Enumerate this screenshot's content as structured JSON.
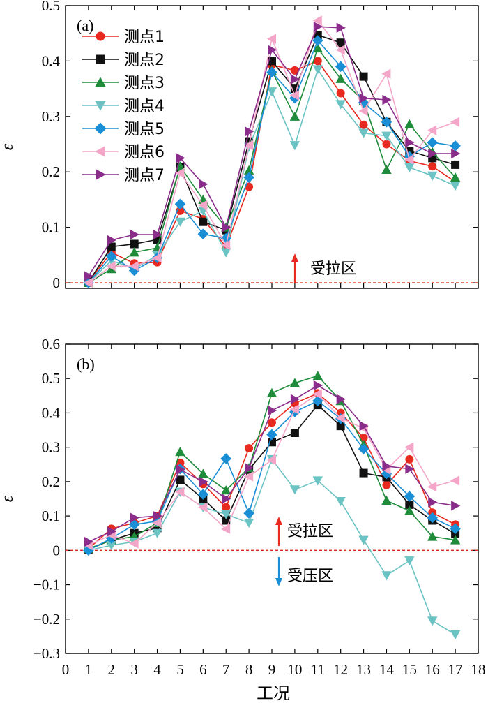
{
  "figure": {
    "xlabel": "工况",
    "x_ticks": [
      "0",
      "1",
      "2",
      "3",
      "4",
      "5",
      "6",
      "7",
      "8",
      "9",
      "10",
      "11",
      "12",
      "13",
      "14",
      "15",
      "16",
      "17",
      "18"
    ]
  },
  "chart_data": [
    {
      "type": "line",
      "panel_label": "(a)",
      "ylabel": "ε",
      "xlim": [
        0,
        18
      ],
      "ylim": [
        -0.01,
        0.5
      ],
      "y_ticks": [
        "0",
        "0.1",
        "0.2",
        "0.3",
        "0.4",
        "0.5"
      ],
      "y_tick_values": [
        0,
        0.1,
        0.2,
        0.3,
        0.4,
        0.5
      ],
      "zero_line": true,
      "annotations": [
        {
          "text": "受拉区",
          "arrow": "up",
          "color": "#e8291f"
        }
      ],
      "legend": {
        "position": "top-left"
      },
      "x": [
        1,
        2,
        3,
        4,
        5,
        6,
        7,
        8,
        9,
        10,
        11,
        12,
        13,
        14,
        15,
        16,
        17
      ],
      "series": [
        {
          "name": "测点1",
          "color": "#e8291f",
          "marker": "circle",
          "values": [
            0.002,
            0.055,
            0.035,
            0.037,
            0.13,
            0.115,
            0.065,
            0.173,
            0.393,
            0.383,
            0.4,
            0.342,
            0.285,
            0.25,
            0.22,
            0.21,
            0.182
          ]
        },
        {
          "name": "测点2",
          "color": "#111111",
          "marker": "square",
          "values": [
            0.001,
            0.065,
            0.07,
            0.078,
            0.208,
            0.11,
            0.095,
            0.255,
            0.4,
            0.35,
            0.447,
            0.433,
            0.372,
            0.29,
            0.238,
            0.225,
            0.213
          ]
        },
        {
          "name": "测点3",
          "color": "#1e8c3a",
          "marker": "triangle-up",
          "values": [
            0.0,
            0.025,
            0.055,
            0.063,
            0.21,
            0.15,
            0.1,
            0.203,
            0.382,
            0.3,
            0.423,
            0.368,
            0.328,
            0.204,
            0.286,
            0.236,
            0.19
          ]
        },
        {
          "name": "测点4",
          "color": "#6cc3c3",
          "marker": "triangle-down",
          "values": [
            0.0,
            0.04,
            0.025,
            0.05,
            0.11,
            0.13,
            0.055,
            0.245,
            0.345,
            0.248,
            0.385,
            0.322,
            0.27,
            0.265,
            0.208,
            0.193,
            0.175
          ]
        },
        {
          "name": "测点5",
          "color": "#1a8fd6",
          "marker": "diamond",
          "values": [
            0.0,
            0.048,
            0.022,
            0.045,
            0.142,
            0.088,
            0.08,
            0.19,
            0.38,
            0.333,
            0.437,
            0.39,
            0.325,
            0.29,
            0.228,
            0.253,
            0.247
          ]
        },
        {
          "name": "测点6",
          "color": "#f4a6c8",
          "marker": "triangle-left",
          "values": [
            0.0,
            0.03,
            0.03,
            0.045,
            0.198,
            0.14,
            0.068,
            0.248,
            0.44,
            0.338,
            0.473,
            0.42,
            0.31,
            0.377,
            0.222,
            0.275,
            0.29
          ]
        },
        {
          "name": "测点7",
          "color": "#8a2d8a",
          "marker": "triangle-right",
          "values": [
            0.012,
            0.077,
            0.087,
            0.087,
            0.225,
            0.178,
            0.1,
            0.273,
            0.42,
            0.367,
            0.462,
            0.46,
            0.333,
            0.33,
            0.253,
            0.233,
            0.233
          ]
        }
      ]
    },
    {
      "type": "line",
      "panel_label": "(b)",
      "ylabel": "ε",
      "xlim": [
        0,
        18
      ],
      "ylim": [
        -0.3,
        0.6
      ],
      "y_ticks": [
        "−0.3",
        "−0.2",
        "−0.1",
        "0",
        "0.1",
        "0.2",
        "0.3",
        "0.4",
        "0.5",
        "0.6"
      ],
      "y_tick_values": [
        -0.3,
        -0.2,
        -0.1,
        0,
        0.1,
        0.2,
        0.3,
        0.4,
        0.5,
        0.6
      ],
      "zero_line": true,
      "annotations": [
        {
          "text": "受拉区",
          "arrow": "up",
          "color": "#e8291f"
        },
        {
          "text": "受压区",
          "arrow": "down",
          "color": "#1a8fd6"
        }
      ],
      "x": [
        1,
        2,
        3,
        4,
        5,
        6,
        7,
        8,
        9,
        10,
        11,
        12,
        13,
        14,
        15,
        16,
        17
      ],
      "series": [
        {
          "name": "测点1",
          "color": "#e8291f",
          "marker": "circle",
          "values": [
            0.005,
            0.063,
            0.08,
            0.1,
            0.255,
            0.193,
            0.125,
            0.297,
            0.372,
            0.428,
            0.457,
            0.4,
            0.327,
            0.19,
            0.265,
            0.11,
            0.075
          ]
        },
        {
          "name": "测点2",
          "color": "#111111",
          "marker": "square",
          "values": [
            0.003,
            0.03,
            0.05,
            0.065,
            0.205,
            0.15,
            0.087,
            0.235,
            0.315,
            0.342,
            0.423,
            0.362,
            0.225,
            0.213,
            0.133,
            0.087,
            0.048
          ]
        },
        {
          "name": "测点3",
          "color": "#1e8c3a",
          "marker": "triangle-up",
          "values": [
            0.005,
            0.03,
            0.04,
            0.08,
            0.287,
            0.223,
            0.175,
            0.24,
            0.458,
            0.487,
            0.508,
            0.435,
            0.307,
            0.145,
            0.115,
            0.04,
            0.03
          ]
        },
        {
          "name": "测点4",
          "color": "#6cc3c3",
          "marker": "triangle-down",
          "values": [
            0.0,
            0.015,
            0.025,
            0.05,
            0.17,
            0.125,
            0.105,
            0.08,
            0.265,
            0.177,
            0.203,
            0.143,
            0.03,
            -0.073,
            -0.03,
            -0.205,
            -0.245
          ]
        },
        {
          "name": "测点5",
          "color": "#1a8fd6",
          "marker": "diamond",
          "values": [
            0.0,
            0.035,
            0.075,
            0.085,
            0.237,
            0.163,
            0.267,
            0.108,
            0.337,
            0.403,
            0.435,
            0.383,
            0.295,
            0.223,
            0.157,
            0.095,
            0.063
          ]
        },
        {
          "name": "测点6",
          "color": "#f4a6c8",
          "marker": "triangle-left",
          "values": [
            0.015,
            0.045,
            0.02,
            0.08,
            0.17,
            0.125,
            0.062,
            0.215,
            0.263,
            0.41,
            0.455,
            0.385,
            0.355,
            0.235,
            0.3,
            0.185,
            0.203
          ]
        },
        {
          "name": "测点7",
          "color": "#8a2d8a",
          "marker": "triangle-right",
          "values": [
            0.025,
            0.055,
            0.095,
            0.1,
            0.235,
            0.2,
            0.15,
            0.24,
            0.407,
            0.44,
            0.48,
            0.44,
            0.362,
            0.245,
            0.237,
            0.14,
            0.13
          ]
        }
      ]
    }
  ]
}
